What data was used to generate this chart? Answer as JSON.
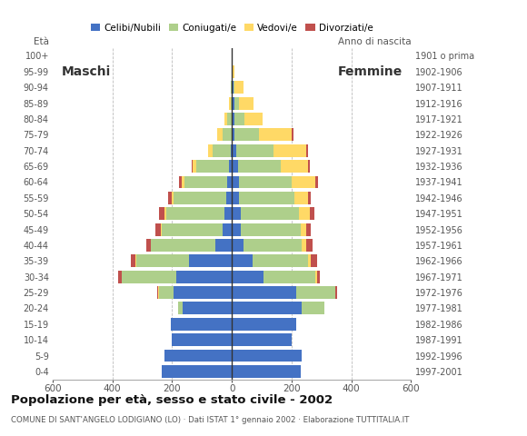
{
  "age_groups": [
    "0-4",
    "5-9",
    "10-14",
    "15-19",
    "20-24",
    "25-29",
    "30-34",
    "35-39",
    "40-44",
    "45-49",
    "50-54",
    "55-59",
    "60-64",
    "65-69",
    "70-74",
    "75-79",
    "80-84",
    "85-89",
    "90-94",
    "95-99",
    "100+"
  ],
  "birth_years": [
    "1997-2001",
    "1992-1996",
    "1987-1991",
    "1982-1986",
    "1977-1981",
    "1972-1976",
    "1967-1971",
    "1962-1966",
    "1957-1961",
    "1952-1956",
    "1947-1951",
    "1942-1946",
    "1937-1941",
    "1932-1936",
    "1927-1931",
    "1922-1926",
    "1917-1921",
    "1912-1916",
    "1907-1911",
    "1902-1906",
    "1901 o prima"
  ],
  "males": {
    "celibe": [
      235,
      225,
      200,
      205,
      165,
      195,
      185,
      145,
      55,
      30,
      25,
      20,
      15,
      10,
      5,
      0,
      0,
      0,
      0,
      0,
      0
    ],
    "coniugato": [
      0,
      0,
      0,
      0,
      15,
      50,
      185,
      175,
      215,
      205,
      195,
      175,
      145,
      110,
      60,
      30,
      15,
      5,
      3,
      0,
      0
    ],
    "vedovo": [
      0,
      0,
      0,
      0,
      0,
      2,
      0,
      2,
      2,
      3,
      5,
      5,
      8,
      10,
      15,
      20,
      10,
      5,
      2,
      0,
      0
    ],
    "divorziato": [
      0,
      0,
      0,
      0,
      0,
      2,
      10,
      15,
      15,
      18,
      18,
      15,
      8,
      5,
      0,
      0,
      0,
      0,
      0,
      0,
      0
    ]
  },
  "females": {
    "nubile": [
      230,
      235,
      200,
      215,
      235,
      215,
      105,
      70,
      40,
      30,
      30,
      25,
      25,
      20,
      15,
      10,
      8,
      8,
      5,
      2,
      0
    ],
    "coniugata": [
      0,
      0,
      0,
      0,
      75,
      130,
      175,
      185,
      195,
      200,
      195,
      185,
      175,
      145,
      125,
      80,
      35,
      15,
      5,
      0,
      0
    ],
    "vedova": [
      0,
      0,
      0,
      0,
      0,
      2,
      5,
      10,
      15,
      20,
      35,
      45,
      80,
      90,
      110,
      110,
      60,
      50,
      30,
      5,
      0
    ],
    "divorziata": [
      0,
      0,
      0,
      0,
      0,
      5,
      10,
      20,
      20,
      15,
      15,
      10,
      8,
      5,
      5,
      5,
      0,
      0,
      0,
      0,
      0
    ]
  },
  "colors": {
    "celibe_nubile": "#4472C4",
    "coniugato_coniugata": "#AECF8B",
    "vedovo_vedova": "#FFD966",
    "divorziato_divorziata": "#C0504D"
  },
  "xlim": 600,
  "title": "Popolazione per età, sesso e stato civile - 2002",
  "subtitle": "COMUNE DI SANT'ANGELO LODIGIANO (LO) · Dati ISTAT 1° gennaio 2002 · Elaborazione TUTTITALIA.IT",
  "legend_labels": [
    "Celibi/Nubili",
    "Coniugati/e",
    "Vedovi/e",
    "Divorziati/e"
  ],
  "background_color": "#ffffff",
  "grid_color": "#bbbbbb"
}
